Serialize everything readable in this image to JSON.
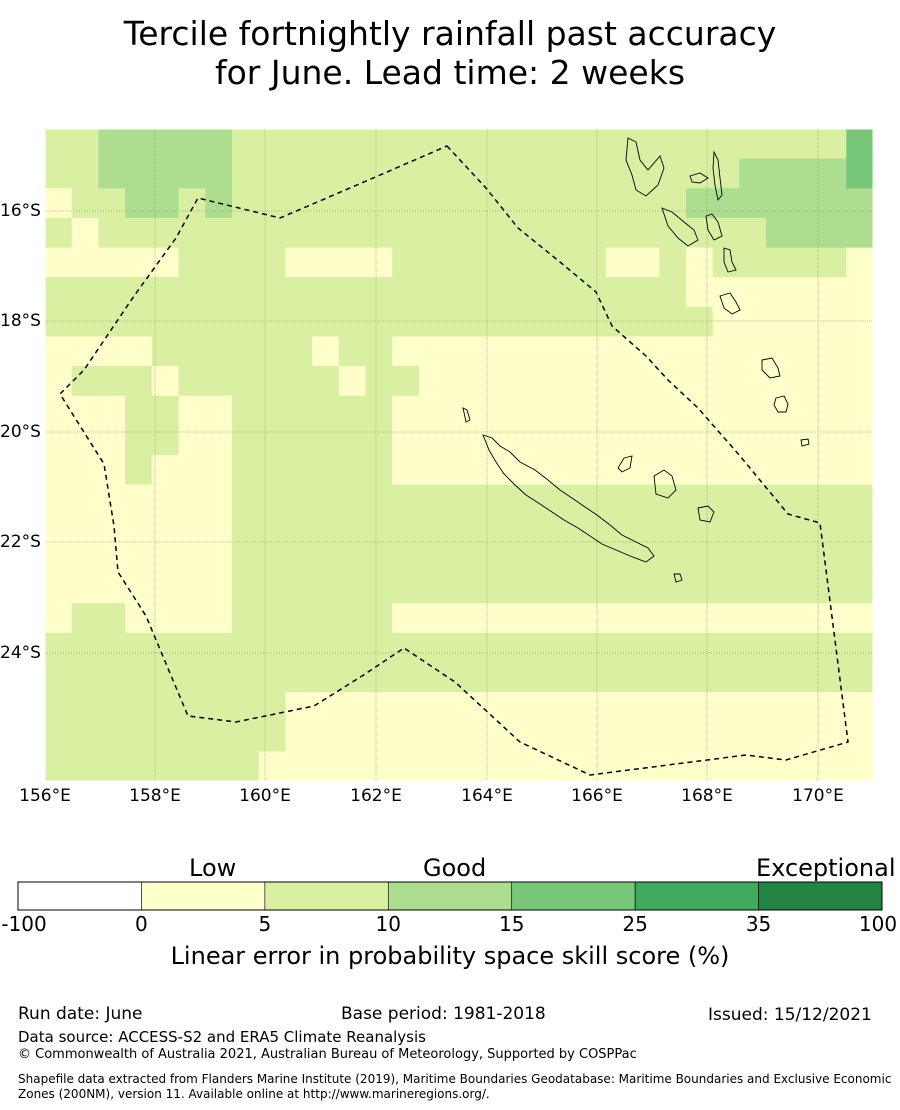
{
  "title_line1": "Tercile fortnightly rainfall past accuracy",
  "title_line2": "for June. Lead time: 2 weeks",
  "lon_labels": [
    "156°E",
    "158°E",
    "160°E",
    "162°E",
    "164°E",
    "166°E",
    "168°E",
    "170°E"
  ],
  "lat_labels": [
    "16°S",
    "18°S",
    "20°S",
    "22°S",
    "24°S"
  ],
  "colorbar": {
    "categories": [
      "Low",
      "Good",
      "Exceptional"
    ],
    "ticks": [
      "-100",
      "0",
      "5",
      "10",
      "15",
      "25",
      "35",
      "100"
    ],
    "colors": [
      "#ffffff",
      "#ffffcc",
      "#d9f0a3",
      "#addd8e",
      "#78c679",
      "#41ab5d",
      "#238443"
    ],
    "label": "Linear error in probability space skill score (%)"
  },
  "footer": {
    "run_date": "Run date: June",
    "base_period": "Base period: 1981-2018",
    "issued": "Issued: 15/12/2021",
    "data_source": "Data source: ACCESS-S2 and ERA5 Climate Reanalysis",
    "copyright": "© Commonwealth of Australia 2021, Australian Bureau of Meteorology, Supported by COSPPac",
    "shapefile": "Shapefile data extracted from Flanders Marine Institute (2019), Maritime Boundaries Geodatabase: Maritime Boundaries and Exclusive Economic Zones (200NM), version 11. Available online at http://www.marineregions.org/."
  },
  "grid_levels": [
    "1122222111111111111111111111113",
    "1122222111111111111111111122223",
    "0112212111111111111111112222222",
    "1011111111111111111111111112222",
    "0000011110000111111110010111110",
    "1111111111111111111111110000000",
    "1111111111111111111111111000000",
    "0000111111011000000000000000000",
    "0111011111101100000000000000000",
    "0001100111111000000000000000000",
    "0001100111111000000000000000000",
    "0001000111111000000000000000000",
    "0000000111111111111111111111111",
    "0000000111111111111111111111111",
    "0000000111111111111111111111111",
    "0000000111111111111111111111111",
    "0110000111111000000000000000000",
    "1111111111111111111111111111111",
    "1111111111111111111111111111111",
    "1111111110000000000000000000000",
    "1111111110000000000000000000000",
    "1111111100000000000000000000000"
  ]
}
